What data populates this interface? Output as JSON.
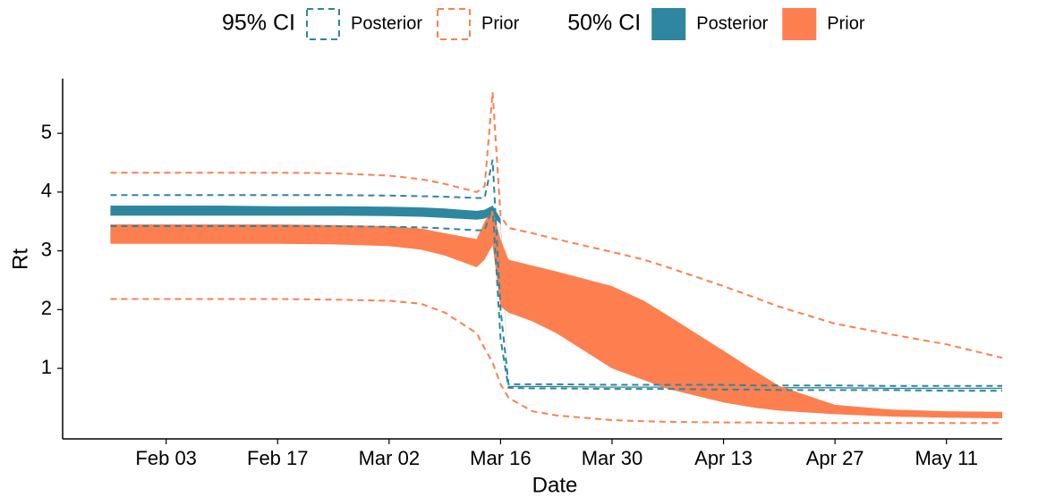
{
  "chart_data": {
    "type": "band",
    "x_label": "Date",
    "y_label": "Rt",
    "x": [
      "Jan 27",
      "Feb 03",
      "Feb 10",
      "Feb 17",
      "Feb 24",
      "Mar 02",
      "Mar 06",
      "Mar 09",
      "Mar 13",
      "Mar 14",
      "Mar 15",
      "Mar 16",
      "Mar 17",
      "Mar 20",
      "Mar 23",
      "Mar 30",
      "Apr 03",
      "Apr 06",
      "Apr 13",
      "Apr 17",
      "Apr 20",
      "Apr 27",
      "May 04",
      "May 11",
      "May 18"
    ],
    "xlim": [
      "Jan 21",
      "May 18"
    ],
    "xticks": [
      "Feb 03",
      "Feb 17",
      "Mar 02",
      "Mar 16",
      "Mar 30",
      "Apr 13",
      "Apr 27",
      "May 11"
    ],
    "ylim": [
      -0.2,
      5.93
    ],
    "yticks": [
      1,
      2,
      3,
      4,
      5
    ],
    "grid": false,
    "legend": "top",
    "bands": [
      {
        "title": "95% CI",
        "style": "dashed",
        "series": [
          {
            "name": "Posterior",
            "color": "#2e86a0",
            "upper": [
              3.95,
              3.95,
              3.95,
              3.95,
              3.95,
              3.94,
              3.93,
              3.92,
              3.9,
              3.9,
              4.55,
              2.0,
              0.73,
              0.73,
              0.73,
              0.72,
              0.72,
              0.72,
              0.72,
              0.71,
              0.71,
              0.71,
              0.7,
              0.7,
              0.7
            ],
            "lower": [
              3.42,
              3.42,
              3.42,
              3.42,
              3.42,
              3.41,
              3.4,
              3.38,
              3.35,
              3.35,
              3.75,
              1.5,
              0.67,
              0.66,
              0.66,
              0.65,
              0.65,
              0.65,
              0.64,
              0.64,
              0.63,
              0.63,
              0.63,
              0.62,
              0.62
            ]
          },
          {
            "name": "Prior",
            "color": "#fd7f4f",
            "upper": [
              4.33,
              4.33,
              4.33,
              4.33,
              4.32,
              4.28,
              4.22,
              4.14,
              4.0,
              4.1,
              5.7,
              3.6,
              3.39,
              3.3,
              3.2,
              2.98,
              2.85,
              2.72,
              2.4,
              2.2,
              2.05,
              1.76,
              1.58,
              1.41,
              1.18
            ],
            "lower": [
              2.18,
              2.18,
              2.18,
              2.18,
              2.17,
              2.15,
              2.1,
              1.95,
              1.6,
              1.34,
              1.1,
              0.73,
              0.5,
              0.27,
              0.2,
              0.12,
              0.1,
              0.09,
              0.08,
              0.08,
              0.07,
              0.07,
              0.07,
              0.07,
              0.07
            ]
          }
        ]
      },
      {
        "title": "50% CI",
        "style": "filled",
        "series": [
          {
            "name": "Posterior",
            "color": "#2e86a0",
            "upper": [
              3.77,
              3.77,
              3.77,
              3.76,
              3.76,
              3.75,
              3.74,
              3.72,
              3.68,
              3.7,
              3.77,
              3.55,
              0.7,
              0.7,
              0.7,
              0.69,
              0.69,
              0.69,
              0.68,
              0.68,
              0.68,
              0.68,
              0.67,
              0.67,
              0.67
            ],
            "lower": [
              3.6,
              3.6,
              3.6,
              3.6,
              3.6,
              3.59,
              3.58,
              3.56,
              3.53,
              3.55,
              3.6,
              3.45,
              0.68,
              0.68,
              0.68,
              0.67,
              0.67,
              0.67,
              0.66,
              0.66,
              0.66,
              0.66,
              0.65,
              0.65,
              0.65
            ]
          },
          {
            "name": "Prior",
            "color": "#fd7f4f",
            "upper": [
              3.45,
              3.45,
              3.45,
              3.45,
              3.44,
              3.42,
              3.38,
              3.3,
              3.2,
              3.5,
              3.7,
              3.2,
              2.85,
              2.75,
              2.65,
              2.4,
              2.15,
              1.9,
              1.3,
              0.95,
              0.7,
              0.38,
              0.3,
              0.27,
              0.26
            ],
            "lower": [
              3.12,
              3.12,
              3.12,
              3.12,
              3.11,
              3.08,
              3.02,
              2.92,
              2.72,
              2.85,
              3.1,
              2.05,
              1.95,
              1.8,
              1.6,
              1.0,
              0.8,
              0.65,
              0.42,
              0.33,
              0.28,
              0.22,
              0.18,
              0.16,
              0.15
            ]
          }
        ]
      }
    ]
  }
}
